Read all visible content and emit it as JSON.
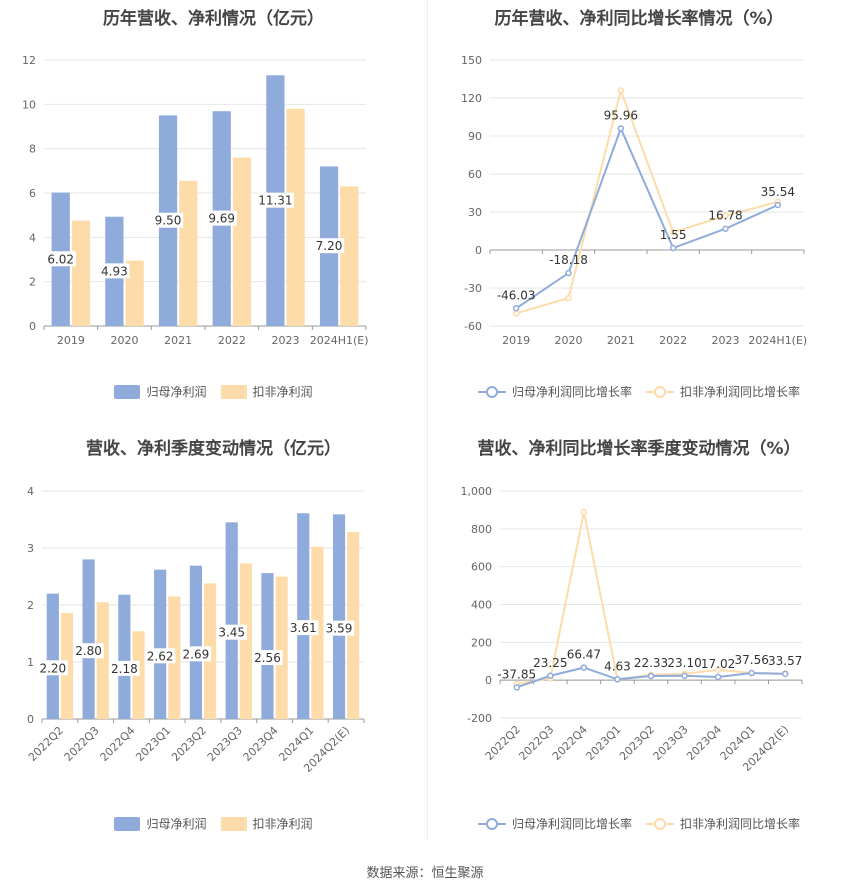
{
  "source_label": "数据来源：恒生聚源",
  "colors": {
    "blue": "#8eabdb",
    "orange": "#fddcaa",
    "blue_line": "#8eabdb",
    "orange_line": "#fddcaa"
  },
  "chart_data": [
    {
      "type": "bar",
      "title": "历年营收、净利情况（亿元）",
      "categories": [
        "2019",
        "2020",
        "2021",
        "2022",
        "2023",
        "2024H1(E)"
      ],
      "series": [
        {
          "name": "归母净利润",
          "values": [
            6.02,
            4.93,
            9.5,
            9.69,
            11.31,
            7.2
          ],
          "labels": [
            "6.02",
            "4.93",
            "9.50",
            "9.69",
            "11.31",
            "7.20"
          ]
        },
        {
          "name": "扣非净利润",
          "values": [
            4.75,
            2.95,
            6.55,
            7.6,
            9.8,
            6.3
          ]
        }
      ],
      "ylim": [
        0,
        12
      ],
      "yticks": [
        "0",
        "2",
        "4",
        "6",
        "8",
        "10",
        "12"
      ],
      "legend": "bottom"
    },
    {
      "type": "line",
      "title": "历年营收、净利同比增长率情况（%）",
      "categories": [
        "2019",
        "2020",
        "2021",
        "2022",
        "2023",
        "2024H1(E)"
      ],
      "series": [
        {
          "name": "归母净利润同比增长率",
          "values": [
            -46.03,
            -18.18,
            95.96,
            1.55,
            16.78,
            35.54
          ],
          "labels": [
            "-46.03",
            "-18.18",
            "95.96",
            "1.55",
            "16.78",
            "35.54"
          ]
        },
        {
          "name": "扣非净利润同比增长率",
          "values": [
            -50,
            -38,
            126,
            14,
            27,
            38
          ]
        }
      ],
      "ylim": [
        -60,
        150
      ],
      "yticks": [
        "-60",
        "-30",
        "0",
        "30",
        "60",
        "90",
        "120",
        "150"
      ],
      "legend": "bottom"
    },
    {
      "type": "bar",
      "title": "营收、净利季度变动情况（亿元）",
      "categories": [
        "2022Q2",
        "2022Q3",
        "2022Q4",
        "2023Q1",
        "2023Q2",
        "2023Q3",
        "2023Q4",
        "2024Q1",
        "2024Q2(E)"
      ],
      "series": [
        {
          "name": "归母净利润",
          "values": [
            2.2,
            2.8,
            2.18,
            2.62,
            2.69,
            3.45,
            2.56,
            3.61,
            3.59
          ],
          "labels": [
            "2.20",
            "2.80",
            "2.18",
            "2.62",
            "2.69",
            "3.45",
            "2.56",
            "3.61",
            "3.59"
          ]
        },
        {
          "name": "扣非净利润",
          "values": [
            1.86,
            2.05,
            1.54,
            2.15,
            2.38,
            2.73,
            2.5,
            3.02,
            3.28
          ]
        }
      ],
      "ylim": [
        0,
        4
      ],
      "yticks": [
        "0",
        "1",
        "2",
        "3",
        "4"
      ],
      "legend": "bottom"
    },
    {
      "type": "line",
      "title": "营收、净利同比增长率季度变动情况（%）",
      "categories": [
        "2022Q2",
        "2022Q3",
        "2022Q4",
        "2023Q1",
        "2023Q2",
        "2023Q3",
        "2023Q4",
        "2024Q1",
        "2024Q2(E)"
      ],
      "series": [
        {
          "name": "归母净利润同比增长率",
          "values": [
            -37.85,
            23.25,
            66.47,
            4.63,
            22.33,
            23.1,
            17.02,
            37.56,
            33.57
          ],
          "labels": [
            "-37.85",
            "23.25",
            "66.47",
            "4.63",
            "22.33",
            "23.10",
            "17.02",
            "37.56",
            "33.57"
          ]
        },
        {
          "name": "扣非净利润同比增长率",
          "values": [
            -20,
            10,
            888,
            3,
            28,
            33,
            55,
            37,
            35
          ]
        }
      ],
      "ylim": [
        -200,
        1000
      ],
      "yticks": [
        "-200",
        "0",
        "200",
        "400",
        "600",
        "800",
        "1,000"
      ],
      "legend": "bottom"
    }
  ]
}
